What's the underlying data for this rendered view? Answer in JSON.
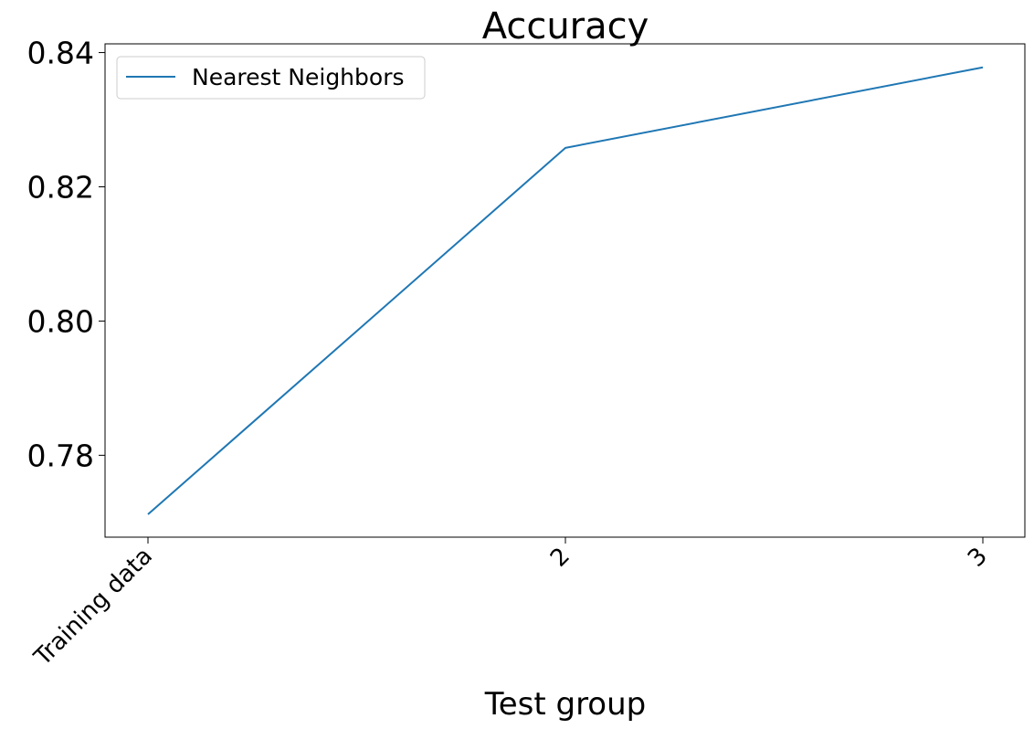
{
  "chart_data": {
    "type": "line",
    "title": "Accuracy",
    "xlabel": "Test group",
    "ylabel": "",
    "categories": [
      "Training data",
      "2",
      "3"
    ],
    "series": [
      {
        "name": "Nearest Neighbors",
        "values": [
          0.7712,
          0.8258,
          0.8378
        ],
        "color": "#1f77b4"
      }
    ],
    "ylim": [
      0.7678,
      0.8413
    ],
    "yticks": [
      0.78,
      0.8,
      0.82,
      0.84
    ],
    "ytick_labels": [
      "0.78",
      "0.80",
      "0.82",
      "0.84"
    ],
    "grid": false,
    "legend_position": "upper-left"
  }
}
